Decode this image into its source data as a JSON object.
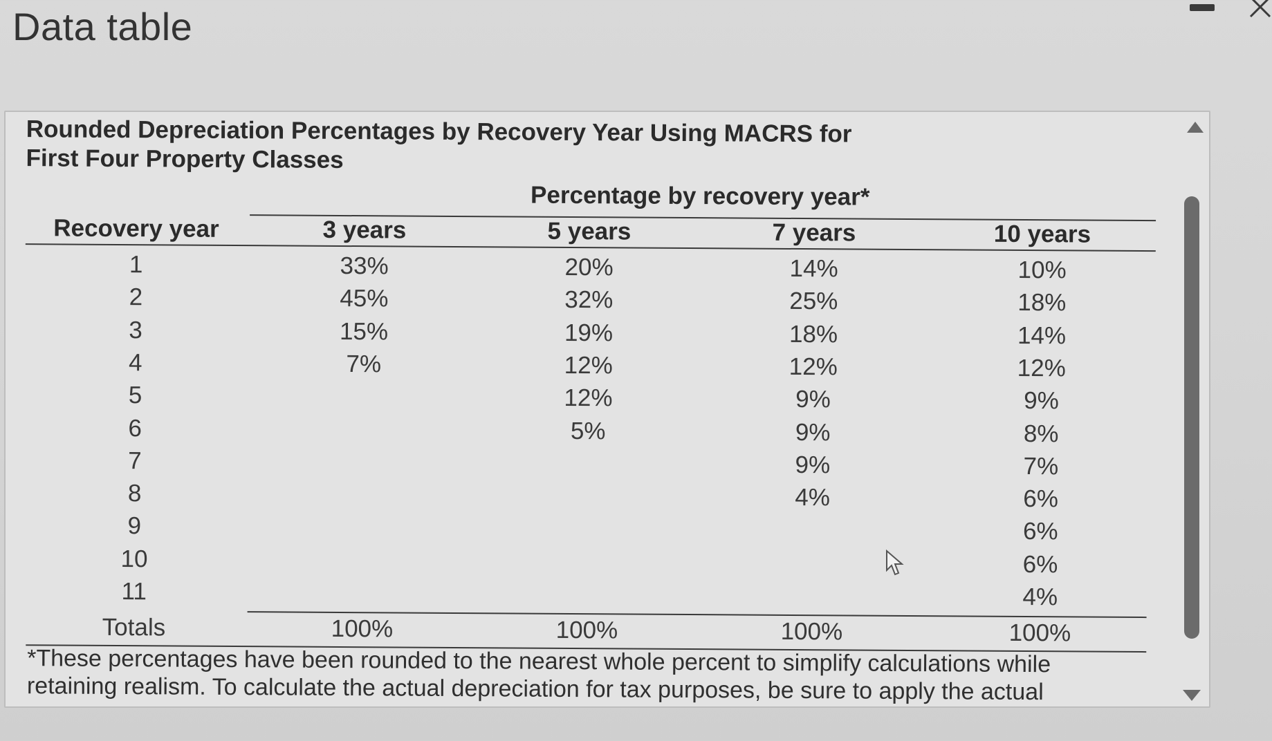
{
  "window": {
    "title": "Data table"
  },
  "table": {
    "title_line1": "Rounded Depreciation Percentages by Recovery Year Using MACRS for",
    "title_line2": "First Four Property Classes",
    "group_header": "Percentage by recovery year*",
    "columns": [
      "Recovery year",
      "3 years",
      "5 years",
      "7 years",
      "10 years"
    ],
    "rows": [
      [
        "1",
        "33%",
        "20%",
        "14%",
        "10%"
      ],
      [
        "2",
        "45%",
        "32%",
        "25%",
        "18%"
      ],
      [
        "3",
        "15%",
        "19%",
        "18%",
        "14%"
      ],
      [
        "4",
        "7%",
        "12%",
        "12%",
        "12%"
      ],
      [
        "5",
        "",
        "12%",
        "9%",
        "9%"
      ],
      [
        "6",
        "",
        "5%",
        "9%",
        "8%"
      ],
      [
        "7",
        "",
        "",
        "9%",
        "7%"
      ],
      [
        "8",
        "",
        "",
        "4%",
        "6%"
      ],
      [
        "9",
        "",
        "",
        "",
        "6%"
      ],
      [
        "10",
        "",
        "",
        "",
        "6%"
      ],
      [
        "11",
        "",
        "",
        "",
        "4%"
      ]
    ],
    "totals": [
      "Totals",
      "100%",
      "100%",
      "100%",
      "100%"
    ],
    "footnote": "*These percentages have been rounded to the nearest whole percent to simplify calculations while retaining realism. To calculate the actual depreciation for tax purposes, be sure to apply the actual"
  },
  "icons": {
    "minimize": "minimize-icon",
    "close": "close-icon",
    "scroll_up": "scroll-up-icon",
    "scroll_down": "scroll-down-icon",
    "cursor": "cursor-icon"
  }
}
